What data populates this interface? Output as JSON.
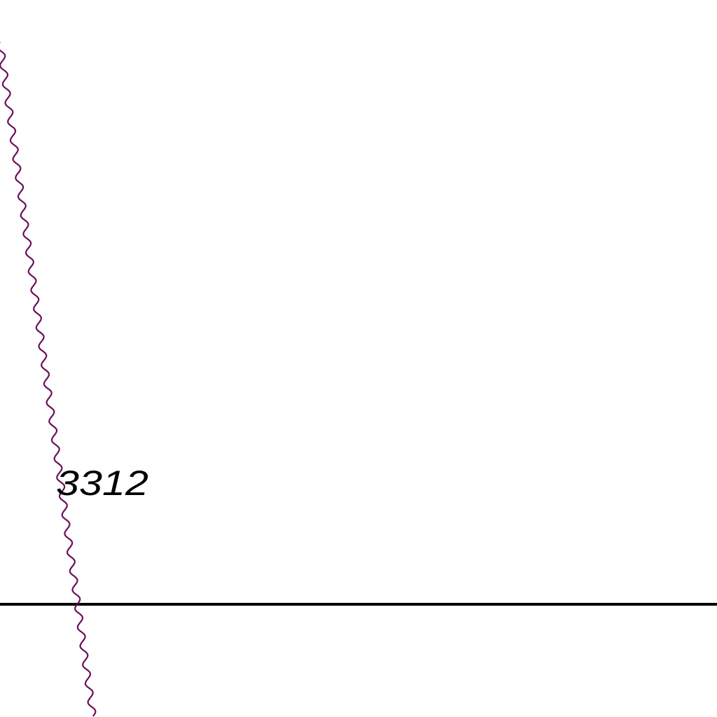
{
  "map": {
    "route_label": "3312",
    "colors": {
      "background": "#ffffff",
      "wavy_line": "#6b0f5a",
      "horizontal_road": "#000000",
      "label_text": "#000000"
    }
  }
}
